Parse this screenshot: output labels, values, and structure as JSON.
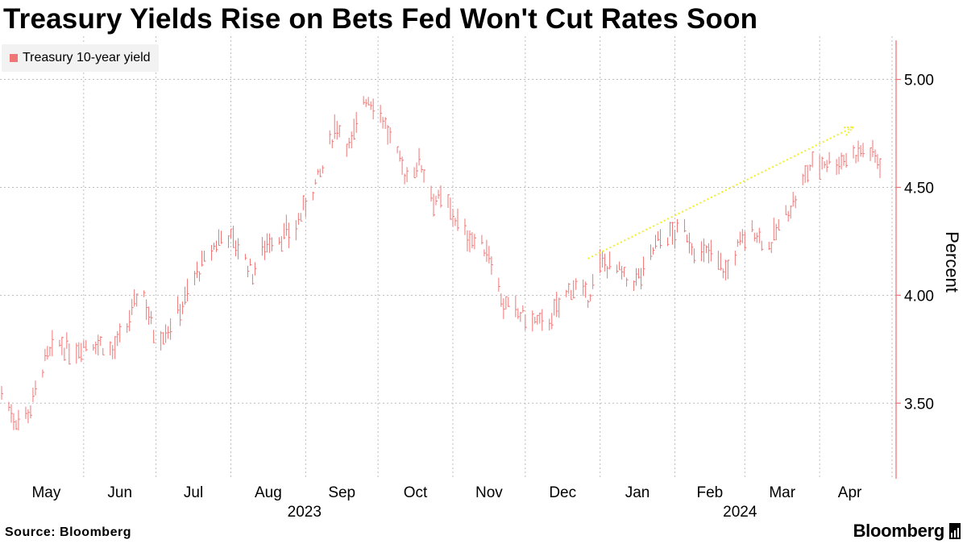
{
  "source": "Source: Bloomberg",
  "brand": "Bloomberg",
  "colors": {
    "series": "#f07575",
    "axis": "#f07575",
    "grid": "#bdbdbd",
    "trend_arrow": "#f2ee2a"
  },
  "chart_data": {
    "type": "line",
    "title": "Treasury Yields Rise on Bets Fed Won't Cut Rates Soon",
    "legend": [
      "Treasury 10-year yield"
    ],
    "legend_position": "top-left",
    "ylabel": "Percent",
    "y_axis_side": "right",
    "ylim": [
      3.15,
      5.2
    ],
    "yticks": [
      3.5,
      4.0,
      4.5,
      5.0
    ],
    "ytick_labels": [
      "3.50",
      "4.00",
      "4.50",
      "5.00"
    ],
    "months": [
      "May",
      "Jun",
      "Jul",
      "Aug",
      "Sep",
      "Oct",
      "Nov",
      "Dec",
      "Jan",
      "Feb",
      "Mar",
      "Apr"
    ],
    "years": [
      "2023",
      "2024"
    ],
    "grid": true,
    "series": [
      {
        "name": "Treasury 10-year yield",
        "date_range": [
          "2023-04-28",
          "2024-04-26"
        ],
        "weekly_values": [
          3.55,
          3.42,
          3.46,
          3.68,
          3.78,
          3.74,
          3.78,
          3.78,
          3.74,
          3.85,
          4.06,
          3.8,
          3.85,
          3.96,
          4.1,
          4.2,
          4.3,
          4.22,
          4.1,
          4.25,
          4.27,
          4.3,
          4.45,
          4.58,
          4.8,
          4.68,
          4.92,
          4.88,
          4.7,
          4.55,
          4.62,
          4.45,
          4.42,
          4.3,
          4.25,
          4.2,
          3.95,
          3.92,
          3.88,
          3.86,
          3.95,
          4.05,
          3.98,
          4.15,
          4.13,
          4.05,
          4.1,
          4.25,
          4.28,
          4.3,
          4.18,
          4.2,
          4.1,
          4.25,
          4.3,
          4.22,
          4.35,
          4.45,
          4.6,
          4.62,
          4.62,
          4.65,
          4.68,
          4.62
        ]
      }
    ],
    "annotation": {
      "type": "arrow",
      "description": "dotted trend arrow",
      "from": [
        "2023-12-27",
        4.17
      ],
      "to": [
        "2024-04-15",
        4.78
      ]
    }
  }
}
